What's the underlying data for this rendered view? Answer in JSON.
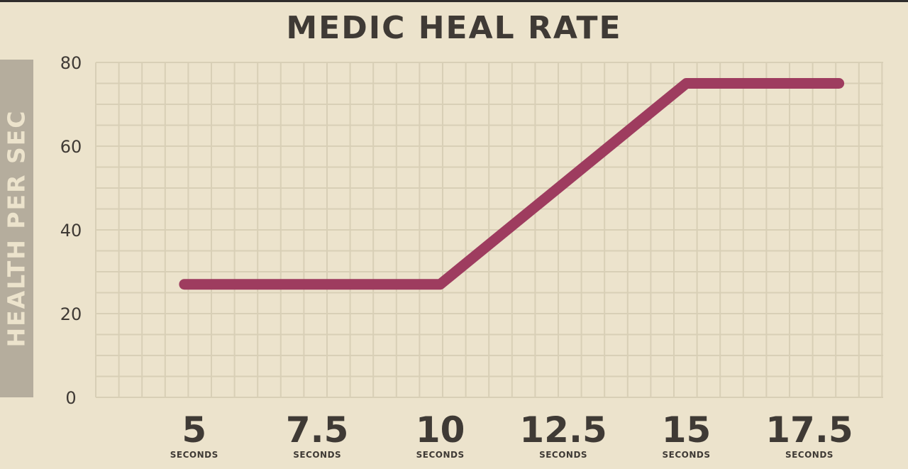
{
  "colors": {
    "background": "#ece3cc",
    "grid": "#d8cfb6",
    "line": "#9e3c5f",
    "text": "#3f3a35",
    "ylabel_band": "#b5ad9d",
    "ylabel_text": "#ece3cc"
  },
  "chart_data": {
    "type": "line",
    "title": "MEDIC HEAL RATE",
    "ylabel": "HEALTH PER SEC",
    "xlabel": "",
    "x_tick_values": [
      5,
      7.5,
      10,
      12.5,
      15,
      17.5
    ],
    "x_tick_labels": [
      "5",
      "7.5",
      "10",
      "12.5",
      "15",
      "17.5"
    ],
    "x_tick_sublabel": "SECONDS",
    "y_ticks": [
      0,
      20,
      40,
      60,
      80
    ],
    "xlim": [
      3.0,
      19.0
    ],
    "ylim": [
      0,
      80
    ],
    "grid": true,
    "series": [
      {
        "points": [
          [
            4.8,
            27
          ],
          [
            10,
            27
          ],
          [
            15,
            75
          ],
          [
            18.1,
            75
          ]
        ]
      }
    ]
  }
}
